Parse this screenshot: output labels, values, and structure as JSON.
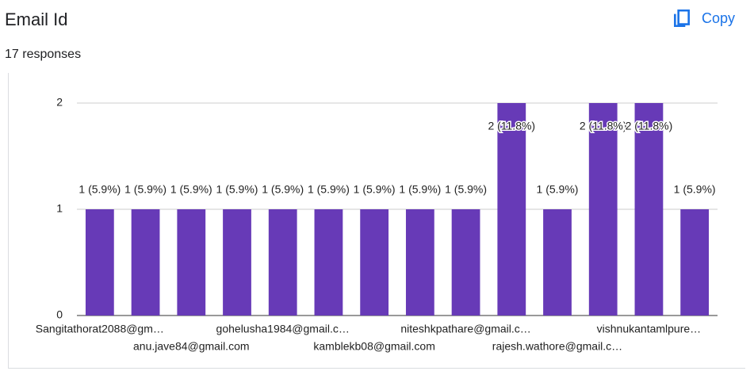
{
  "header": {
    "title": "Email Id",
    "responses": "17 responses",
    "copy": "Copy"
  },
  "chart_data": {
    "type": "bar",
    "categories": [
      "Sangitathorat2088@gm…",
      null,
      "anu.jave84@gmail.com",
      null,
      "gohelusha1984@gmail.c…",
      null,
      "kamblekb08@gmail.com",
      null,
      "niteshkpathare@gmail.c…",
      null,
      "rajesh.wathore@gmail.c…",
      null,
      "vishnukantamlpure…",
      null
    ],
    "values": [
      1,
      1,
      1,
      1,
      1,
      1,
      1,
      1,
      1,
      2,
      1,
      2,
      2,
      1
    ],
    "value_labels": [
      "1 (5.9%)",
      "1 (5.9%)",
      "1 (5.9%)",
      "1 (5.9%)",
      "1 (5.9%)",
      "1 (5.9%)",
      "1 (5.9%)",
      "1 (5.9%)",
      "1 (5.9%)",
      "2 (11.8%)",
      "1 (5.9%)",
      "2 (11.8%)",
      "2 (11.8%)",
      "1 (5.9%)"
    ],
    "color": "#673ab7",
    "ylim": [
      0,
      2
    ],
    "yticks": [
      0,
      1,
      2
    ],
    "grid": true
  }
}
